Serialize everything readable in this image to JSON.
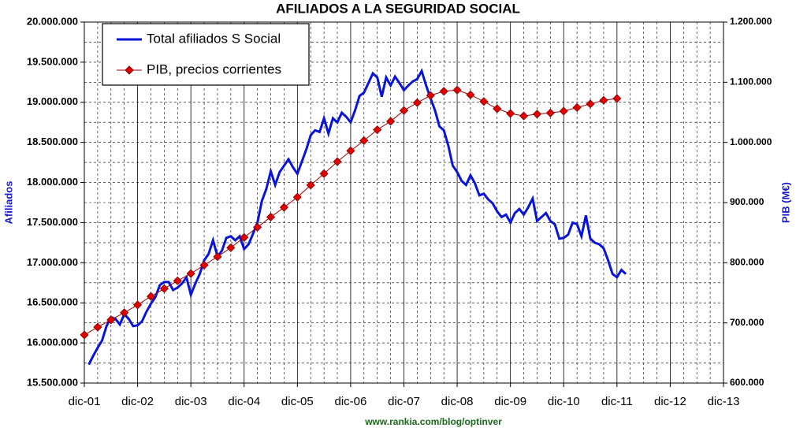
{
  "chart_data": {
    "type": "line",
    "title": "AFILIADOS A LA SEGURIDAD SOCIAL",
    "y_label": "Afiliados",
    "y2_label": "PIB (M€)",
    "source": "www.rankia.com/blog/optinver",
    "xlim": [
      0,
      144
    ],
    "xticks": [
      {
        "value": 0,
        "label": "dic-01"
      },
      {
        "value": 12,
        "label": "dic-02"
      },
      {
        "value": 24,
        "label": "dic-03"
      },
      {
        "value": 36,
        "label": "dic-04"
      },
      {
        "value": 48,
        "label": "dic-05"
      },
      {
        "value": 60,
        "label": "dic-06"
      },
      {
        "value": 72,
        "label": "dic-07"
      },
      {
        "value": 84,
        "label": "dic-08"
      },
      {
        "value": 96,
        "label": "dic-09"
      },
      {
        "value": 108,
        "label": "dic-10"
      },
      {
        "value": 120,
        "label": "dic-11"
      },
      {
        "value": 132,
        "label": "dic-12"
      },
      {
        "value": 144,
        "label": "dic-13"
      }
    ],
    "ylim": [
      15500000,
      20000000
    ],
    "yticks": [
      {
        "value": 15500000,
        "label": "15.500.000"
      },
      {
        "value": 16000000,
        "label": "16.000.000"
      },
      {
        "value": 16500000,
        "label": "16.500.000"
      },
      {
        "value": 17000000,
        "label": "17.000.000"
      },
      {
        "value": 17500000,
        "label": "17.500.000"
      },
      {
        "value": 18000000,
        "label": "18.000.000"
      },
      {
        "value": 18500000,
        "label": "18.500.000"
      },
      {
        "value": 19000000,
        "label": "19.000.000"
      },
      {
        "value": 19500000,
        "label": "19.500.000"
      },
      {
        "value": 20000000,
        "label": "20.000.000"
      }
    ],
    "y2lim": [
      600000,
      1200000
    ],
    "y2ticks": [
      {
        "value": 600000,
        "label": "600.000"
      },
      {
        "value": 700000,
        "label": "700.000"
      },
      {
        "value": 800000,
        "label": "800.000"
      },
      {
        "value": 900000,
        "label": "900.000"
      },
      {
        "value": 1000000,
        "label": "1.000.000"
      },
      {
        "value": 1100000,
        "label": "1.100.000"
      },
      {
        "value": 1200000,
        "label": "1.200.000"
      }
    ],
    "grid": true,
    "legend": "upper left",
    "series": [
      {
        "name": "Total afiliados S Social",
        "color": "#0a14d8",
        "axis": "y",
        "marker": "none",
        "x": [
          1,
          2,
          3,
          4,
          5,
          6,
          7,
          8,
          9,
          10,
          11,
          12,
          13,
          14,
          15,
          16,
          17,
          18,
          19,
          20,
          21,
          22,
          23,
          24,
          25,
          26,
          27,
          28,
          29,
          30,
          31,
          32,
          33,
          34,
          35,
          36,
          37,
          38,
          39,
          40,
          41,
          42,
          43,
          44,
          45,
          46,
          47,
          48,
          49,
          50,
          51,
          52,
          53,
          54,
          55,
          56,
          57,
          58,
          59,
          60,
          61,
          62,
          63,
          64,
          65,
          66,
          67,
          68,
          69,
          70,
          71,
          72,
          73,
          74,
          75,
          76,
          77,
          78,
          79,
          80,
          81,
          82,
          83,
          84,
          85,
          86,
          87,
          88,
          89,
          90,
          91,
          92,
          93,
          94,
          95,
          96,
          97,
          98,
          99,
          100,
          101,
          102,
          103,
          104,
          105,
          106,
          107,
          108,
          109,
          110,
          111,
          112,
          113,
          114,
          115,
          116,
          117,
          118,
          119,
          120,
          121,
          122
        ],
        "values": [
          15730000,
          15840000,
          15940000,
          16030000,
          16210000,
          16320000,
          16300000,
          16230000,
          16360000,
          16300000,
          16210000,
          16220000,
          16270000,
          16390000,
          16490000,
          16570000,
          16720000,
          16760000,
          16760000,
          16660000,
          16690000,
          16740000,
          16820000,
          16600000,
          16740000,
          16860000,
          17030000,
          17110000,
          17280000,
          17080000,
          17150000,
          17310000,
          17330000,
          17280000,
          17330000,
          17170000,
          17230000,
          17360000,
          17500000,
          17770000,
          17920000,
          18140000,
          17970000,
          18130000,
          18210000,
          18290000,
          18190000,
          18110000,
          18260000,
          18410000,
          18590000,
          18650000,
          18630000,
          18800000,
          18610000,
          18800000,
          18750000,
          18870000,
          18820000,
          18750000,
          18900000,
          19080000,
          19120000,
          19240000,
          19360000,
          19310000,
          19070000,
          19310000,
          19210000,
          19320000,
          19240000,
          19150000,
          19210000,
          19260000,
          19290000,
          19390000,
          19210000,
          19050000,
          18900000,
          18700000,
          18650000,
          18460000,
          18210000,
          18130000,
          18020000,
          17970000,
          18090000,
          17990000,
          17840000,
          17860000,
          17790000,
          17740000,
          17640000,
          17570000,
          17600000,
          17500000,
          17620000,
          17670000,
          17600000,
          17690000,
          17800000,
          17520000,
          17570000,
          17620000,
          17520000,
          17480000,
          17300000,
          17310000,
          17350000,
          17500000,
          17480000,
          17330000,
          17590000,
          17300000,
          17250000,
          17230000,
          17180000,
          17030000,
          16860000,
          16820000,
          16910000,
          16860000
        ]
      },
      {
        "name": "PIB, precios corrientes",
        "color": "#e00000",
        "axis": "y2",
        "marker": "diamond",
        "x": [
          0,
          3,
          6,
          9,
          12,
          15,
          18,
          21,
          24,
          27,
          30,
          33,
          36,
          39,
          42,
          45,
          48,
          51,
          54,
          57,
          60,
          63,
          66,
          69,
          72,
          75,
          78,
          81,
          84,
          87,
          90,
          93,
          96,
          99,
          102,
          105,
          108,
          111,
          114,
          117,
          120
        ],
        "values": [
          680000,
          693000,
          705000,
          717000,
          730000,
          744000,
          757000,
          770000,
          782000,
          796000,
          810000,
          825000,
          842000,
          859000,
          876000,
          892000,
          909000,
          929000,
          948000,
          968000,
          986000,
          1003000,
          1021000,
          1035000,
          1053000,
          1066000,
          1078000,
          1085000,
          1087000,
          1079000,
          1068000,
          1056000,
          1048000,
          1044000,
          1047000,
          1049000,
          1052000,
          1058000,
          1064000,
          1070000,
          1073000
        ]
      }
    ]
  }
}
